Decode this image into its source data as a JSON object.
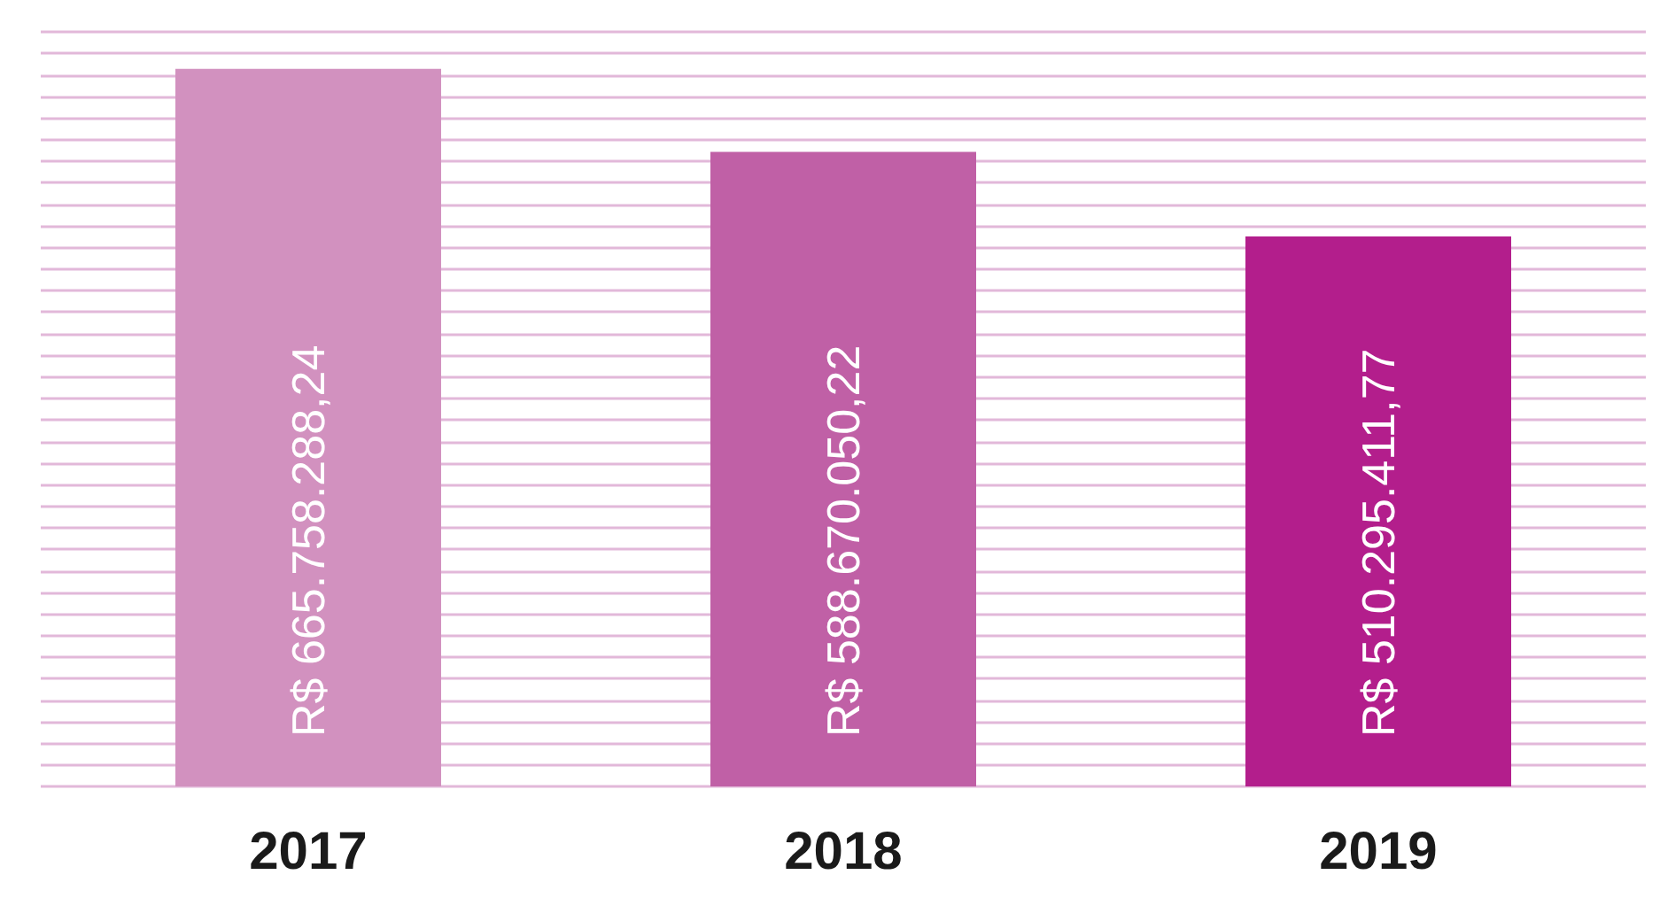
{
  "chart_data": {
    "type": "bar",
    "categories": [
      "2017",
      "2018",
      "2019"
    ],
    "values": [
      665758288.24,
      588670050.22,
      510295411.77
    ],
    "colors": [
      "#d291bf",
      "#c060a6",
      "#b31e8c"
    ],
    "value_labels": [
      "R$ 665.758.288,24",
      "R$ 588.670.050,22",
      "R$ 510.295.411,77"
    ],
    "ylim": [
      0,
      700000000
    ],
    "yticks": [
      {
        "value": 0,
        "label": null
      },
      {
        "value": 20000000,
        "label": null
      },
      {
        "value": 40000000,
        "label": null
      },
      {
        "value": 60000000,
        "label": null
      },
      {
        "value": 80000000,
        "label": null
      },
      {
        "value": 100000000,
        "label": null
      },
      {
        "value": 120000000,
        "label": null
      },
      {
        "value": 140000000,
        "label": null
      },
      {
        "value": 160000000,
        "label": null
      },
      {
        "value": 180000000,
        "label": null
      },
      {
        "value": 200000000,
        "label": null
      },
      {
        "value": 220000000,
        "label": null
      },
      {
        "value": 240000000,
        "label": null
      },
      {
        "value": 260000000,
        "label": null
      },
      {
        "value": 280000000,
        "label": null
      },
      {
        "value": 300000000,
        "label": null
      },
      {
        "value": 320000000,
        "label": null
      },
      {
        "value": 340000000,
        "label": null
      },
      {
        "value": 360000000,
        "label": null
      },
      {
        "value": 380000000,
        "label": null
      },
      {
        "value": 400000000,
        "label": null
      },
      {
        "value": 420000000,
        "label": null
      },
      {
        "value": 440000000,
        "label": null
      },
      {
        "value": 460000000,
        "label": null
      },
      {
        "value": 480000000,
        "label": null
      },
      {
        "value": 500000000,
        "label": null
      },
      {
        "value": 520000000,
        "label": null
      },
      {
        "value": 540000000,
        "label": null
      },
      {
        "value": 560000000,
        "label": null
      },
      {
        "value": 580000000,
        "label": null
      },
      {
        "value": 600000000,
        "label": null
      },
      {
        "value": 620000000,
        "label": null
      },
      {
        "value": 640000000,
        "label": null
      },
      {
        "value": 660000000,
        "label": null
      },
      {
        "value": 680000000,
        "label": null
      },
      {
        "value": 700000000,
        "label": null
      }
    ],
    "tick_labels": "x",
    "grid": "y"
  }
}
